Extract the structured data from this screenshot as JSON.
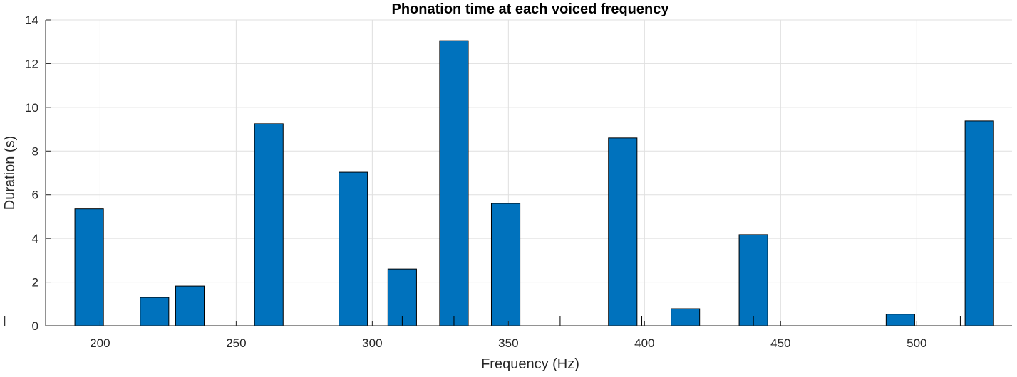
{
  "chart_data": {
    "type": "bar",
    "title": "Phonation time at each voiced frequency",
    "xlabel": "Frequency (Hz)",
    "ylabel": "Duration (s)",
    "xlim": [
      180,
      535
    ],
    "ylim": [
      0,
      14
    ],
    "xticks": [
      200,
      250,
      300,
      350,
      400,
      450,
      500
    ],
    "yticks": [
      0,
      2,
      4,
      6,
      8,
      10,
      12,
      14
    ],
    "grid": true,
    "bar_color": "#0072BD",
    "bar_edge_color": "#000000",
    "bar_width": 10.5,
    "x": [
      196,
      220,
      233,
      262,
      293,
      311,
      330,
      349,
      392,
      415,
      440,
      494,
      523
    ],
    "values": [
      5.35,
      1.3,
      1.82,
      9.25,
      7.03,
      2.6,
      13.05,
      5.6,
      8.6,
      0.78,
      4.17,
      0.53,
      9.38
    ],
    "zero_markers_x": [
      165,
      330,
      399,
      311,
      440,
      516,
      369
    ]
  }
}
